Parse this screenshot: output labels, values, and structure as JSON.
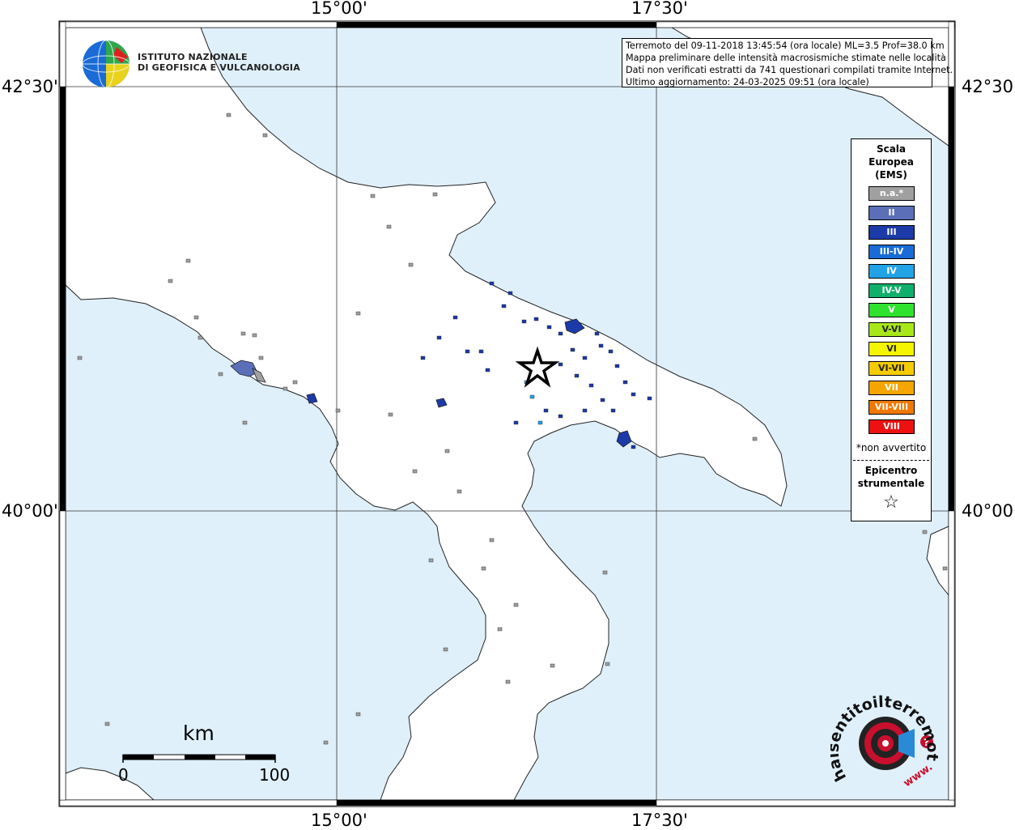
{
  "map": {
    "coordinates": {
      "top": [
        "15°00'",
        "17°30'"
      ],
      "bottom": [
        "15°00'",
        "17°30'"
      ],
      "left": [
        "42°30'",
        "40°00'"
      ],
      "right": [
        "42°30'",
        "40°00'"
      ]
    },
    "colors": {
      "sea": "#dff0fb",
      "land": "#ffffff",
      "coast": "#222222"
    }
  },
  "info": {
    "line1": "Terremoto del 09-11-2018 13:45:54 (ora locale) ML=3.5 Prof=38.0 km",
    "line2": "Mappa preliminare delle intensità macrosismiche stimate nelle località",
    "line3": "Dati non verificati estratti da 741 questionari compilati tramite Internet.",
    "line4": "Ultimo aggiornamento: 24-03-2025 09:51 (ora locale)"
  },
  "logo": {
    "line1": "ISTITUTO NAZIONALE",
    "line2": "DI GEOFISICA E VULCANOLOGIA"
  },
  "legend": {
    "title1": "Scala",
    "title2": "Europea",
    "title3": "(EMS)",
    "items": [
      {
        "label": "n.a.*",
        "color": "#a0a0a0"
      },
      {
        "label": "II",
        "color": "#5a6fb8"
      },
      {
        "label": "III",
        "color": "#1c3aa8"
      },
      {
        "label": "III-IV",
        "color": "#1a6bd6"
      },
      {
        "label": "IV",
        "color": "#21a3e6"
      },
      {
        "label": "IV-V",
        "color": "#10b06a"
      },
      {
        "label": "V",
        "color": "#2ee22e"
      },
      {
        "label": "V-VI",
        "color": "#a8e81a"
      },
      {
        "label": "VI",
        "color": "#f5f500"
      },
      {
        "label": "VI-VII",
        "color": "#f5cc00"
      },
      {
        "label": "VII",
        "color": "#f5a500"
      },
      {
        "label": "VII-VIII",
        "color": "#f07800"
      },
      {
        "label": "VIII",
        "color": "#ee1111"
      }
    ],
    "note": "*non avvertito",
    "epicenter1": "Epicentro",
    "epicenter2": "strumentale",
    "star": "☆"
  },
  "scale": {
    "unit": "km",
    "start": "0",
    "end": "100"
  },
  "hst": {
    "text": "haisentitoilterremoto.it",
    "www": "www."
  }
}
